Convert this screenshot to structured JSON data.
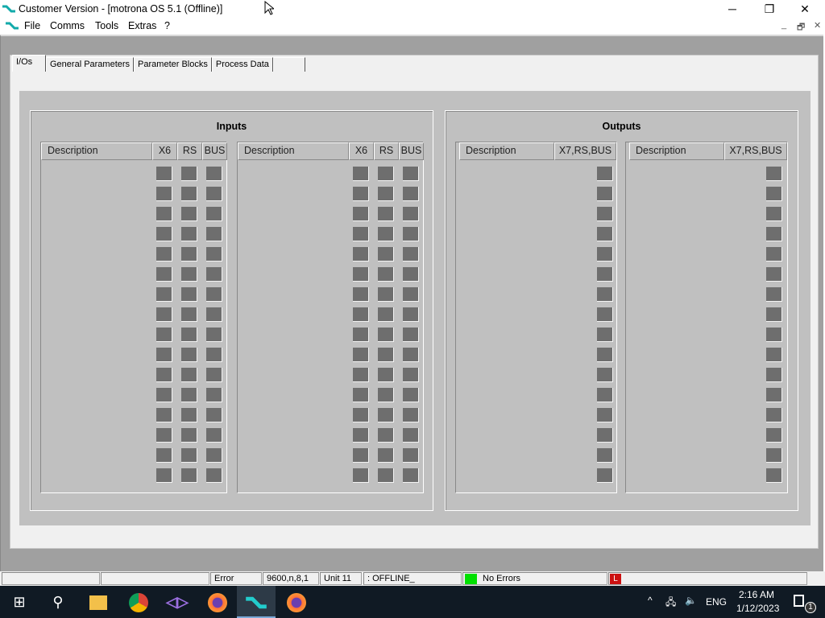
{
  "window": {
    "title": "Customer Version - [motrona OS 5.1   (Offline)]",
    "minimize": "─",
    "maximize": "❐",
    "close": "✕"
  },
  "menu": [
    "File",
    "Comms",
    "Tools",
    "Extras",
    "?"
  ],
  "mdi_controls": [
    "_",
    "🗗",
    "✕"
  ],
  "tabs": [
    "I/Os",
    "General Parameters",
    "Parameter Blocks",
    "Process Data",
    ""
  ],
  "active_tab": "I/Os",
  "inputs": {
    "title": "Inputs",
    "headers": [
      "Description",
      "X6",
      "RS",
      "BUS"
    ],
    "rows": 16,
    "state": "off"
  },
  "outputs": {
    "title": "Outputs",
    "headers": [
      "Description",
      "X7,RS,BUS"
    ],
    "rows": 16,
    "state": "off"
  },
  "colors": {
    "indicator_off": "#6e6e6e",
    "status_ok": "#00e000",
    "status_l": "#cc1111"
  },
  "status": {
    "cells": [
      "",
      "",
      "Error",
      "9600,n,8,1",
      "Unit 11",
      ": OFFLINE_"
    ],
    "errors": "No Errors",
    "l_indicator": "L"
  },
  "taskbar": {
    "time": "2:16 AM",
    "date": "1/12/2023",
    "lang": "ENG",
    "notifications": "1"
  }
}
